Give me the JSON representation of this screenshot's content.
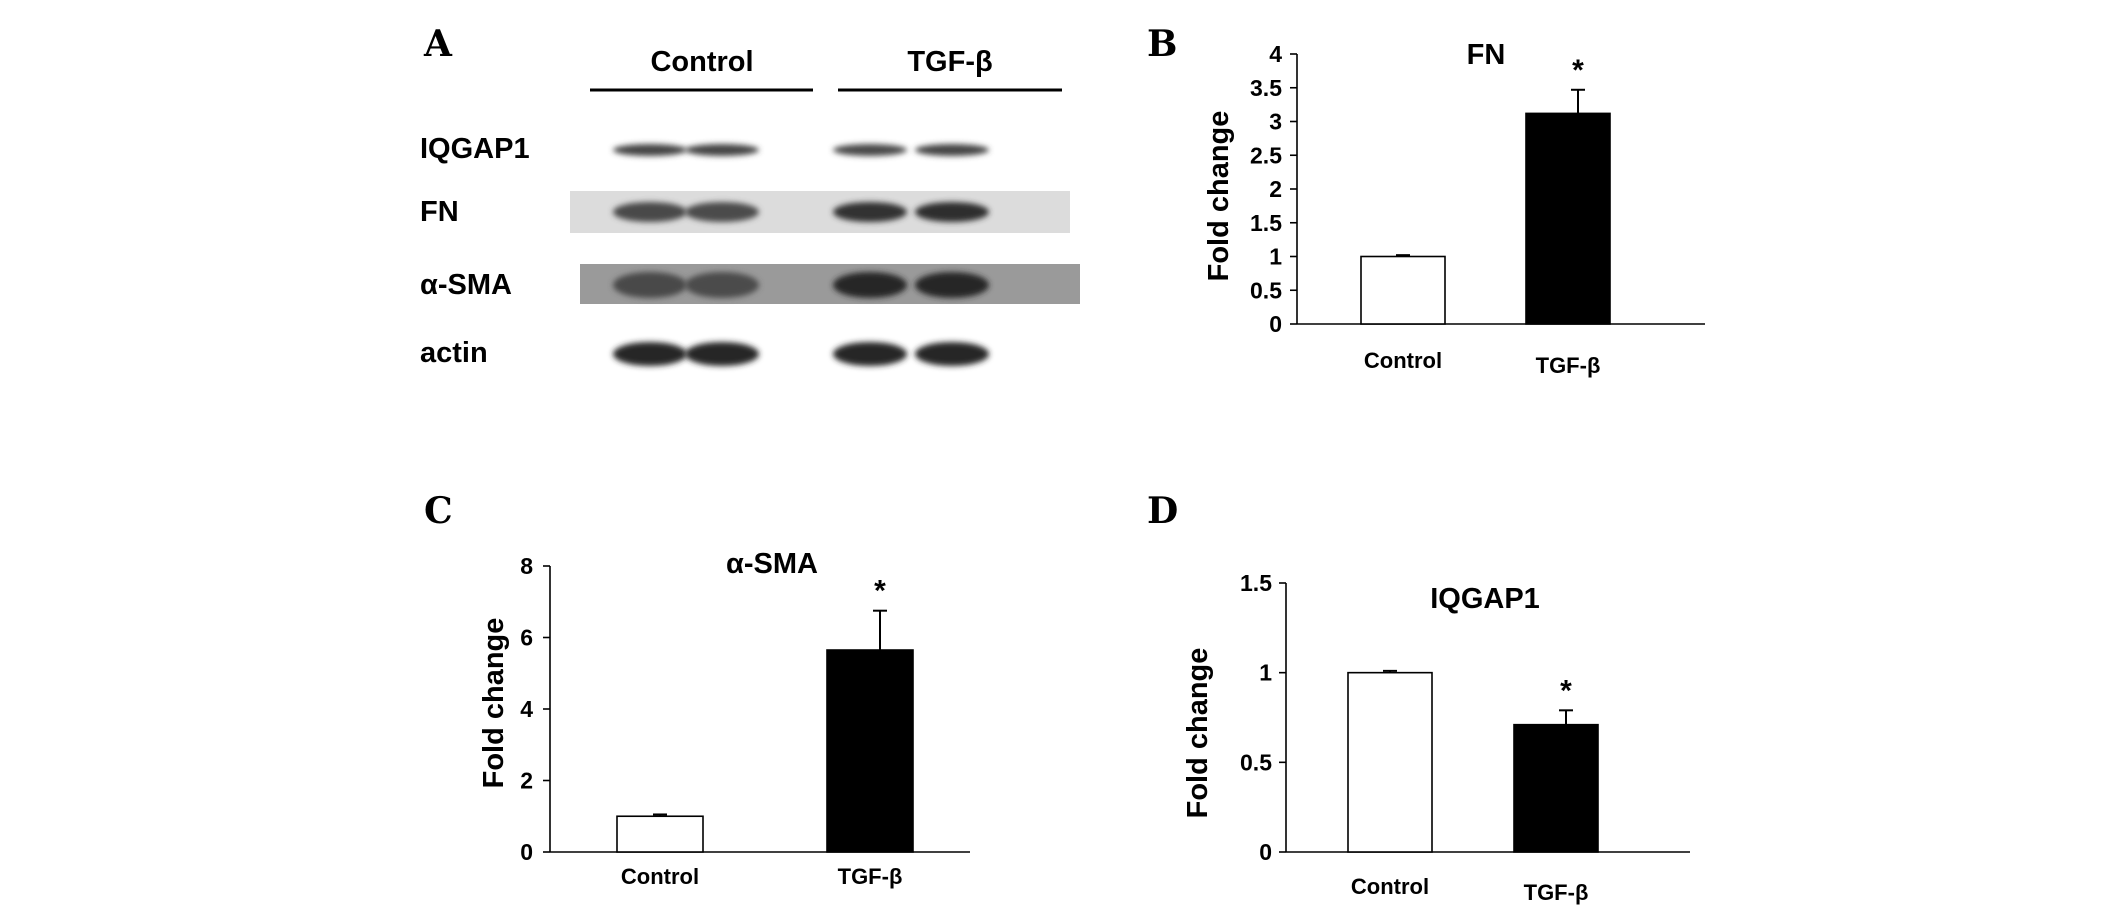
{
  "panels": {
    "A": "A",
    "B": "B",
    "C": "C",
    "D": "D"
  },
  "western_blot": {
    "groups": [
      "Control",
      "TGF-β"
    ],
    "rows": [
      {
        "label": "IQGAP1",
        "intensity": [
          0.6,
          0.6,
          0.55,
          0.6
        ]
      },
      {
        "label": "FN",
        "intensity": [
          0.55,
          0.5,
          0.85,
          0.9
        ]
      },
      {
        "label": "α-SMA",
        "intensity": [
          0.55,
          0.5,
          1.0,
          1.0
        ]
      },
      {
        "label": "actin",
        "intensity": [
          1.0,
          1.0,
          1.0,
          1.0
        ]
      }
    ]
  },
  "chart_data": [
    {
      "type": "bar",
      "panel": "B",
      "title": "FN",
      "xlabel": "",
      "ylabel": "Fold change",
      "categories": [
        "Control",
        "TGF-β"
      ],
      "values": [
        1.0,
        3.12
      ],
      "errors": [
        0.02,
        0.35
      ],
      "significance": [
        "",
        "*"
      ],
      "bar_colors": [
        "#ffffff",
        "#000000"
      ],
      "ylim": [
        0,
        4
      ],
      "yticks": [
        "0",
        "0.5",
        "1",
        "1.5",
        "2",
        "2.5",
        "3",
        "3.5",
        "4"
      ]
    },
    {
      "type": "bar",
      "panel": "C",
      "title": "α-SMA",
      "xlabel": "",
      "ylabel": "Fold change",
      "categories": [
        "Control",
        "TGF-β"
      ],
      "values": [
        1.0,
        5.65
      ],
      "errors": [
        0.05,
        1.1
      ],
      "significance": [
        "",
        "*"
      ],
      "bar_colors": [
        "#ffffff",
        "#000000"
      ],
      "ylim": [
        0,
        8
      ],
      "yticks": [
        "0",
        "2",
        "4",
        "6",
        "8"
      ]
    },
    {
      "type": "bar",
      "panel": "D",
      "title": "IQGAP1",
      "xlabel": "",
      "ylabel": "Fold change",
      "categories": [
        "Control",
        "TGF-β"
      ],
      "values": [
        1.0,
        0.71
      ],
      "errors": [
        0.01,
        0.08
      ],
      "significance": [
        "",
        "*"
      ],
      "bar_colors": [
        "#ffffff",
        "#000000"
      ],
      "ylim": [
        0,
        1.5
      ],
      "yticks": [
        "0",
        "0.5",
        "1",
        "1.5"
      ]
    }
  ]
}
